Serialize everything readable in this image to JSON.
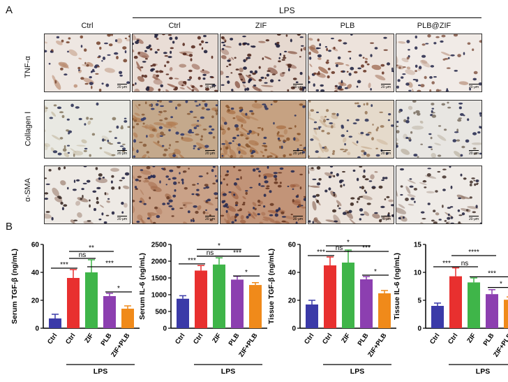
{
  "panels": {
    "a_label": "A",
    "b_label": "B",
    "group_header": "LPS",
    "columns": [
      "Ctrl",
      "Ctrl",
      "ZIF",
      "PLB",
      "PLB@ZIF"
    ],
    "rows": [
      "TNF-α",
      "Collagen Ⅰ",
      "α-SMA"
    ],
    "scale_label": "20 μm"
  },
  "images": [
    {
      "row": 0,
      "col": 0,
      "bg": "#eee7e2",
      "cell": "#7a4a35",
      "nuc": "#2d2f52",
      "density": 0.45,
      "stain": "#b58467"
    },
    {
      "row": 0,
      "col": 1,
      "bg": "#e9ddd6",
      "cell": "#5a2e22",
      "nuc": "#20203c",
      "density": 0.8,
      "stain": "#8c5440"
    },
    {
      "row": 0,
      "col": 2,
      "bg": "#e6d9d0",
      "cell": "#4e281e",
      "nuc": "#1c1c38",
      "density": 0.85,
      "stain": "#7d4634"
    },
    {
      "row": 0,
      "col": 3,
      "bg": "#ede3dc",
      "cell": "#6a3a2a",
      "nuc": "#262846",
      "density": 0.6,
      "stain": "#9a6248"
    },
    {
      "row": 0,
      "col": 4,
      "bg": "#f1ebe7",
      "cell": "#8a6050",
      "nuc": "#2e3050",
      "density": 0.45,
      "stain": "#b99480"
    },
    {
      "row": 1,
      "col": 0,
      "bg": "#e9e9e3",
      "cell": "#8b7d66",
      "nuc": "#2f3457",
      "density": 0.35,
      "stain": "#c0b49a"
    },
    {
      "row": 1,
      "col": 1,
      "bg": "#c4a98c",
      "cell": "#8b5e3c",
      "nuc": "#323a6a",
      "density": 0.9,
      "stain": "#b07a4f"
    },
    {
      "row": 1,
      "col": 2,
      "bg": "#c6a282",
      "cell": "#8a562f",
      "nuc": "#2f355e",
      "density": 0.85,
      "stain": "#a86e42"
    },
    {
      "row": 1,
      "col": 3,
      "bg": "#e5dacb",
      "cell": "#9a7a5c",
      "nuc": "#33385c",
      "density": 0.6,
      "stain": "#c8ad90"
    },
    {
      "row": 1,
      "col": 4,
      "bg": "#e8e6e2",
      "cell": "#7f7468",
      "nuc": "#2b3054",
      "density": 0.5,
      "stain": "#b8ae9e"
    },
    {
      "row": 2,
      "col": 0,
      "bg": "#eeeae5",
      "cell": "#3a2a25",
      "nuc": "#22223e",
      "density": 0.4,
      "stain": "#8c6a5a"
    },
    {
      "row": 2,
      "col": 1,
      "bg": "#caa288",
      "cell": "#6c3f2a",
      "nuc": "#2a2d55",
      "density": 0.9,
      "stain": "#a56d4d"
    },
    {
      "row": 2,
      "col": 2,
      "bg": "#c29478",
      "cell": "#6a3a24",
      "nuc": "#272a50",
      "density": 0.9,
      "stain": "#9e6040"
    },
    {
      "row": 2,
      "col": 3,
      "bg": "#ece4dd",
      "cell": "#3e2a22",
      "nuc": "#24243e",
      "density": 0.6,
      "stain": "#8a6656"
    },
    {
      "row": 2,
      "col": 4,
      "bg": "#efebe7",
      "cell": "#4a3a33",
      "nuc": "#262640",
      "density": 0.5,
      "stain": "#907668"
    }
  ],
  "chart_data": [
    {
      "type": "bar",
      "ylabel": "Serum TGF-β (ng/mL)",
      "ylim": [
        0,
        60
      ],
      "yticks": [
        0,
        20,
        40,
        60
      ],
      "categories": [
        "Ctrl",
        "Ctrl",
        "ZIF",
        "PLB",
        "ZIF+PLB"
      ],
      "values": [
        7,
        36,
        40,
        23,
        14
      ],
      "errors": [
        3,
        6,
        9,
        2,
        2
      ],
      "colors": [
        "#3b3aa8",
        "#e8302f",
        "#3fb549",
        "#8c3fb0",
        "#f08a1a"
      ],
      "group_label": "LPS",
      "significance": [
        {
          "from": 0,
          "to": 1,
          "label": "***",
          "y": 43
        },
        {
          "from": 1,
          "to": 2,
          "label": "ns",
          "y": 50
        },
        {
          "from": 1,
          "to": 3,
          "label": "**",
          "y": 55
        },
        {
          "from": 3,
          "to": 4,
          "label": "*",
          "y": 26
        },
        {
          "from": 2,
          "to": 4,
          "label": "***",
          "y": 44
        }
      ]
    },
    {
      "type": "bar",
      "ylabel": "Serum IL-6 (ng/mL)",
      "ylim": [
        0,
        2500
      ],
      "yticks": [
        0,
        500,
        1000,
        1500,
        2000,
        2500
      ],
      "categories": [
        "Ctrl",
        "Ctrl",
        "ZIF",
        "PLB",
        "ZIF+PLB"
      ],
      "values": [
        880,
        1720,
        1900,
        1450,
        1290
      ],
      "errors": [
        90,
        150,
        200,
        100,
        70
      ],
      "colors": [
        "#3b3aa8",
        "#e8302f",
        "#3fb549",
        "#8c3fb0",
        "#f08a1a"
      ],
      "group_label": "LPS",
      "significance": [
        {
          "from": 0,
          "to": 1,
          "label": "***",
          "y": 1920
        },
        {
          "from": 1,
          "to": 2,
          "label": "ns",
          "y": 2150
        },
        {
          "from": 1,
          "to": 3,
          "label": "*",
          "y": 2350
        },
        {
          "from": 3,
          "to": 4,
          "label": "*",
          "y": 1560
        },
        {
          "from": 2,
          "to": 4,
          "label": "***",
          "y": 2150
        }
      ]
    },
    {
      "type": "bar",
      "ylabel": "Tissue TGF-β (ng/mL)",
      "ylim": [
        0,
        60
      ],
      "yticks": [
        0,
        20,
        40,
        60
      ],
      "categories": [
        "Ctrl",
        "Ctrl",
        "ZIF",
        "PLB",
        "ZIF+PLB"
      ],
      "values": [
        17,
        45,
        47,
        35,
        25
      ],
      "errors": [
        3,
        6,
        9,
        2,
        2
      ],
      "colors": [
        "#3b3aa8",
        "#e8302f",
        "#3fb549",
        "#8c3fb0",
        "#f08a1a"
      ],
      "group_label": "LPS",
      "significance": [
        {
          "from": 0,
          "to": 1,
          "label": "***",
          "y": 52
        },
        {
          "from": 1,
          "to": 2,
          "label": "ns",
          "y": 55
        },
        {
          "from": 1,
          "to": 3,
          "label": "*",
          "y": 59
        },
        {
          "from": 3,
          "to": 4,
          "label": "*",
          "y": 38
        },
        {
          "from": 2,
          "to": 4,
          "label": "***",
          "y": 55
        }
      ]
    },
    {
      "type": "bar",
      "ylabel": "Tissue IL-6 (ng/mL)",
      "ylim": [
        0,
        15
      ],
      "yticks": [
        0,
        5,
        10,
        15
      ],
      "categories": [
        "Ctrl",
        "Ctrl",
        "ZIF",
        "PLB",
        "ZIF+PLB"
      ],
      "values": [
        4,
        9.3,
        8.2,
        6.1,
        5.1
      ],
      "errors": [
        0.5,
        1.5,
        0.8,
        0.8,
        0.5
      ],
      "colors": [
        "#3b3aa8",
        "#e8302f",
        "#3fb549",
        "#8c3fb0",
        "#f08a1a"
      ],
      "group_label": "LPS",
      "significance": [
        {
          "from": 0,
          "to": 1,
          "label": "***",
          "y": 11
        },
        {
          "from": 1,
          "to": 2,
          "label": "ns",
          "y": 11
        },
        {
          "from": 1,
          "to": 3,
          "label": "****",
          "y": 13
        },
        {
          "from": 3,
          "to": 4,
          "label": "*",
          "y": 7.3
        },
        {
          "from": 2,
          "to": 4,
          "label": "***",
          "y": 9.2
        }
      ]
    }
  ]
}
